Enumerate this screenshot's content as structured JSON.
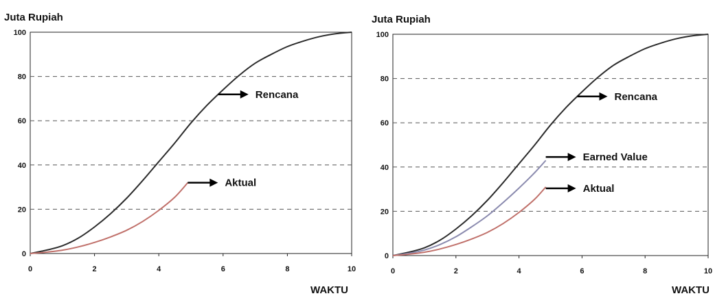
{
  "chart_data": [
    {
      "type": "line",
      "ylabel": "Juta Rupiah",
      "xlabel": "WAKTU",
      "xlim": [
        0,
        10
      ],
      "ylim": [
        0,
        100
      ],
      "x_ticks": [
        "0",
        "2",
        "4",
        "6",
        "8",
        "10"
      ],
      "y_ticks": [
        "0",
        "20",
        "40",
        "60",
        "80",
        "100"
      ],
      "grid": "horizontal dashed",
      "series": [
        {
          "name": "Rencana",
          "color": "#2b2b2b",
          "x": [
            0,
            0.5,
            1,
            1.5,
            2,
            2.5,
            3,
            3.5,
            4,
            4.5,
            5,
            5.5,
            6,
            6.5,
            7,
            7.5,
            8,
            8.5,
            9,
            9.5,
            10
          ],
          "y": [
            0,
            1.5,
            3.5,
            7,
            12,
            18,
            25,
            33,
            41.5,
            50,
            59,
            67,
            74,
            80.5,
            86,
            90,
            93.5,
            96,
            98,
            99.3,
            100
          ]
        },
        {
          "name": "Aktual",
          "color": "#c0706a",
          "x": [
            0,
            0.5,
            1,
            1.5,
            2,
            2.5,
            3,
            3.5,
            4,
            4.5,
            4.9
          ],
          "y": [
            0,
            0.6,
            1.5,
            3,
            5,
            7.5,
            10.5,
            14.5,
            19.5,
            25.5,
            32
          ]
        }
      ],
      "annotations": [
        {
          "text": "Rencana",
          "series": "Rencana",
          "at_x": 5.85
        },
        {
          "text": "Aktual",
          "series": "Aktual",
          "at_x": 4.9
        }
      ]
    },
    {
      "type": "line",
      "ylabel": "Juta Rupiah",
      "xlabel": "WAKTU",
      "xlim": [
        0,
        10
      ],
      "ylim": [
        0,
        100
      ],
      "x_ticks": [
        "0",
        "2",
        "4",
        "6",
        "8",
        "10"
      ],
      "y_ticks": [
        "0",
        "20",
        "40",
        "60",
        "80",
        "100"
      ],
      "grid": "horizontal dashed",
      "series": [
        {
          "name": "Rencana",
          "color": "#2b2b2b",
          "x": [
            0,
            0.5,
            1,
            1.5,
            2,
            2.5,
            3,
            3.5,
            4,
            4.5,
            5,
            5.5,
            6,
            6.5,
            7,
            7.5,
            8,
            8.5,
            9,
            9.5,
            10
          ],
          "y": [
            0,
            1.5,
            3.5,
            7,
            12,
            18,
            25,
            33,
            41.5,
            50,
            59,
            67,
            74,
            80.5,
            86,
            90,
            93.5,
            96,
            98,
            99.3,
            100
          ]
        },
        {
          "name": "Earned Value",
          "color": "#8a8aae",
          "x": [
            0,
            0.5,
            1,
            1.5,
            2,
            2.5,
            3,
            3.5,
            4,
            4.5,
            4.85
          ],
          "y": [
            0,
            1,
            2.5,
            5,
            8.5,
            13,
            18,
            24,
            30.5,
            37.5,
            43
          ]
        },
        {
          "name": "Aktual",
          "color": "#c0706a",
          "x": [
            0,
            0.5,
            1,
            1.5,
            2,
            2.5,
            3,
            3.5,
            4,
            4.5,
            4.85
          ],
          "y": [
            0,
            0.6,
            1.5,
            3,
            5,
            7.5,
            10.5,
            14.5,
            19.5,
            25.5,
            31
          ]
        }
      ],
      "annotations": [
        {
          "text": "Rencana",
          "series": "Rencana",
          "at_x": 5.85
        },
        {
          "text": "Earned Value",
          "series": "Earned Value",
          "at_x": 4.85
        },
        {
          "text": "Aktual",
          "series": "Aktual",
          "at_x": 4.85
        }
      ]
    }
  ]
}
